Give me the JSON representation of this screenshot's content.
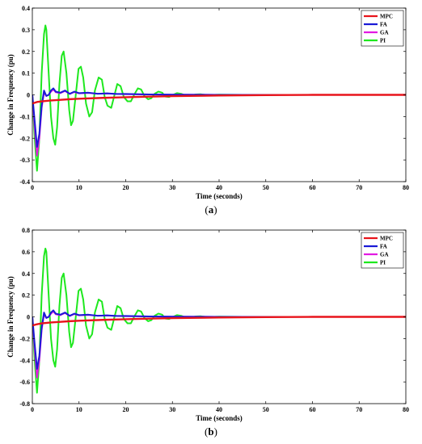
{
  "chart_data": [
    {
      "type": "line",
      "panel_label": "a",
      "xlabel": "Time (seconds)",
      "ylabel": "Change in Frequency (pu)",
      "xlim": [
        0,
        80
      ],
      "ylim": [
        -0.4,
        0.4
      ],
      "xticks": [
        0,
        10,
        20,
        30,
        40,
        50,
        60,
        70,
        80
      ],
      "yticks": [
        -0.4,
        -0.3,
        -0.2,
        -0.1,
        0,
        0.1,
        0.2,
        0.3,
        0.4
      ],
      "ytick_labels": [
        "-0.4",
        "-0.3",
        "-0.2",
        "-0.1",
        "0",
        "0.1",
        "0.2",
        "0.3",
        "0.4"
      ],
      "legend_position": "top-right",
      "series": [
        {
          "name": "MPC",
          "color": "#e8141b",
          "x": [
            0,
            1,
            2,
            4,
            6,
            8,
            10,
            15,
            20,
            25,
            30,
            40,
            50,
            60,
            80
          ],
          "y": [
            -0.04,
            -0.033,
            -0.03,
            -0.026,
            -0.023,
            -0.02,
            -0.018,
            -0.014,
            -0.011,
            -0.008,
            -0.006,
            -0.003,
            -0.001,
            0,
            0
          ]
        },
        {
          "name": "FA",
          "color": "#1a1ad6",
          "x": [
            0,
            0.5,
            1,
            1.5,
            2,
            2.5,
            3,
            3.5,
            4,
            4.5,
            5,
            6,
            7,
            8,
            9,
            10,
            12,
            14,
            16,
            18,
            20,
            25,
            30,
            40,
            80
          ],
          "y": [
            0,
            -0.12,
            -0.24,
            -0.18,
            -0.05,
            0.02,
            -0.005,
            0.0,
            0.02,
            0.03,
            0.015,
            0.01,
            0.02,
            0.005,
            0.015,
            0.008,
            0.01,
            0.005,
            0.007,
            0.004,
            0.004,
            0.002,
            0.001,
            0,
            0
          ]
        },
        {
          "name": "GA",
          "color": "#e21ae2",
          "x": [
            0,
            0.5,
            1,
            1.5,
            2,
            2.5,
            3,
            3.5,
            4,
            4.5,
            5,
            6,
            7,
            8,
            9,
            10,
            12,
            14,
            16,
            18,
            20,
            25,
            30,
            40,
            80
          ],
          "y": [
            0,
            -0.15,
            -0.28,
            -0.2,
            -0.06,
            0.01,
            -0.005,
            0.0,
            0.015,
            0.025,
            0.012,
            0.008,
            0.018,
            0.004,
            0.013,
            0.007,
            0.009,
            0.005,
            0.006,
            0.004,
            0.003,
            0.002,
            0.001,
            0,
            0
          ]
        },
        {
          "name": "PI",
          "color": "#1ee81e",
          "x": [
            0,
            0.5,
            1,
            1.5,
            2,
            2.5,
            2.8,
            3,
            3.5,
            4,
            4.5,
            4.9,
            5.3,
            5.8,
            6.3,
            6.7,
            7.3,
            7.9,
            8.3,
            8.7,
            9.3,
            9.9,
            10.4,
            10.9,
            11.5,
            12.2,
            12.8,
            13.4,
            14.2,
            14.9,
            15.5,
            16.1,
            16.9,
            17.6,
            18.2,
            18.9,
            19.6,
            20.4,
            21.1,
            21.8,
            22.6,
            23.3,
            24.0,
            24.8,
            25.5,
            26.2,
            27.0,
            27.8,
            28.5,
            29.3,
            30.1,
            31.0,
            32.0,
            33.0,
            34.0,
            35.0,
            36.0,
            37.0,
            38.0,
            40.0,
            45.0,
            50.0,
            80.0
          ],
          "y": [
            0,
            -0.2,
            -0.35,
            -0.2,
            0.1,
            0.28,
            0.32,
            0.3,
            0.1,
            -0.1,
            -0.2,
            -0.23,
            -0.15,
            0.05,
            0.18,
            0.2,
            0.1,
            -0.07,
            -0.14,
            -0.12,
            0.0,
            0.12,
            0.13,
            0.08,
            -0.04,
            -0.1,
            -0.08,
            0.02,
            0.08,
            0.07,
            -0.01,
            -0.05,
            -0.06,
            0.0,
            0.05,
            0.04,
            -0.01,
            -0.03,
            -0.03,
            0.0,
            0.03,
            0.025,
            -0.005,
            -0.02,
            -0.015,
            0.005,
            0.015,
            0.01,
            -0.008,
            -0.01,
            0.0,
            0.008,
            0.004,
            -0.004,
            -0.003,
            0.002,
            0.003,
            0.0,
            -0.001,
            0.001,
            0.0,
            0.0,
            0.0
          ]
        }
      ]
    },
    {
      "type": "line",
      "panel_label": "b",
      "xlabel": "Time (seconds)",
      "ylabel": "Change in Frequency (pu)",
      "xlim": [
        0,
        80
      ],
      "ylim": [
        -0.8,
        0.8
      ],
      "xticks": [
        0,
        10,
        20,
        30,
        40,
        50,
        60,
        70,
        80
      ],
      "yticks": [
        -0.8,
        -0.6,
        -0.4,
        -0.2,
        0,
        0.2,
        0.4,
        0.6,
        0.8
      ],
      "ytick_labels": [
        "-0.8",
        "-0.6",
        "-0.4",
        "-0.2",
        "0",
        "0.2",
        "0.4",
        "0.6",
        "0.8"
      ],
      "legend_position": "top-right",
      "series": [
        {
          "name": "MPC",
          "color": "#e8141b",
          "x": [
            0,
            1,
            2,
            4,
            6,
            8,
            10,
            15,
            20,
            25,
            30,
            40,
            50,
            60,
            80
          ],
          "y": [
            -0.08,
            -0.068,
            -0.06,
            -0.052,
            -0.046,
            -0.04,
            -0.036,
            -0.028,
            -0.022,
            -0.016,
            -0.012,
            -0.006,
            -0.002,
            0,
            0
          ]
        },
        {
          "name": "FA",
          "color": "#1a1ad6",
          "x": [
            0,
            0.5,
            1,
            1.5,
            2,
            2.5,
            3,
            3.5,
            4,
            4.5,
            5,
            6,
            7,
            8,
            9,
            10,
            12,
            14,
            16,
            18,
            20,
            25,
            30,
            40,
            80
          ],
          "y": [
            0,
            -0.25,
            -0.48,
            -0.36,
            -0.1,
            0.04,
            -0.01,
            0.0,
            0.04,
            0.06,
            0.03,
            0.02,
            0.04,
            0.01,
            0.03,
            0.016,
            0.02,
            0.01,
            0.014,
            0.008,
            0.008,
            0.004,
            0.002,
            0,
            0
          ]
        },
        {
          "name": "GA",
          "color": "#e21ae2",
          "x": [
            0,
            0.5,
            1,
            1.5,
            2,
            2.5,
            3,
            3.5,
            4,
            4.5,
            5,
            6,
            7,
            8,
            9,
            10,
            12,
            14,
            16,
            18,
            20,
            25,
            30,
            40,
            80
          ],
          "y": [
            0,
            -0.3,
            -0.56,
            -0.4,
            -0.12,
            0.02,
            -0.01,
            0.0,
            0.03,
            0.05,
            0.024,
            0.016,
            0.036,
            0.008,
            0.026,
            0.014,
            0.018,
            0.01,
            0.012,
            0.008,
            0.006,
            0.004,
            0.002,
            0,
            0
          ]
        },
        {
          "name": "PI",
          "color": "#1ee81e",
          "x": [
            0,
            0.5,
            1,
            1.5,
            2,
            2.5,
            2.8,
            3,
            3.5,
            4,
            4.5,
            4.9,
            5.3,
            5.8,
            6.3,
            6.7,
            7.3,
            7.9,
            8.3,
            8.7,
            9.3,
            9.9,
            10.4,
            10.9,
            11.5,
            12.2,
            12.8,
            13.4,
            14.2,
            14.9,
            15.5,
            16.1,
            16.9,
            17.6,
            18.2,
            18.9,
            19.6,
            20.4,
            21.1,
            21.8,
            22.6,
            23.3,
            24.0,
            24.8,
            25.5,
            26.2,
            27.0,
            27.8,
            28.5,
            29.3,
            30.1,
            31.0,
            32.0,
            33.0,
            34.0,
            35.0,
            36.0,
            37.0,
            38.0,
            40.0,
            45.0,
            50.0,
            80.0
          ],
          "y": [
            0,
            -0.4,
            -0.7,
            -0.4,
            0.2,
            0.56,
            0.63,
            0.6,
            0.2,
            -0.2,
            -0.4,
            -0.46,
            -0.3,
            0.1,
            0.36,
            0.4,
            0.2,
            -0.14,
            -0.28,
            -0.24,
            0.0,
            0.24,
            0.26,
            0.16,
            -0.08,
            -0.2,
            -0.16,
            0.04,
            0.16,
            0.14,
            -0.02,
            -0.1,
            -0.12,
            0.0,
            0.1,
            0.08,
            -0.02,
            -0.06,
            -0.06,
            0.0,
            0.06,
            0.05,
            -0.01,
            -0.04,
            -0.03,
            0.01,
            0.03,
            0.02,
            -0.016,
            -0.02,
            0.0,
            0.016,
            0.008,
            -0.008,
            -0.006,
            0.004,
            0.006,
            0.0,
            -0.002,
            0.002,
            0.0,
            0.0,
            0.0
          ]
        }
      ]
    }
  ]
}
